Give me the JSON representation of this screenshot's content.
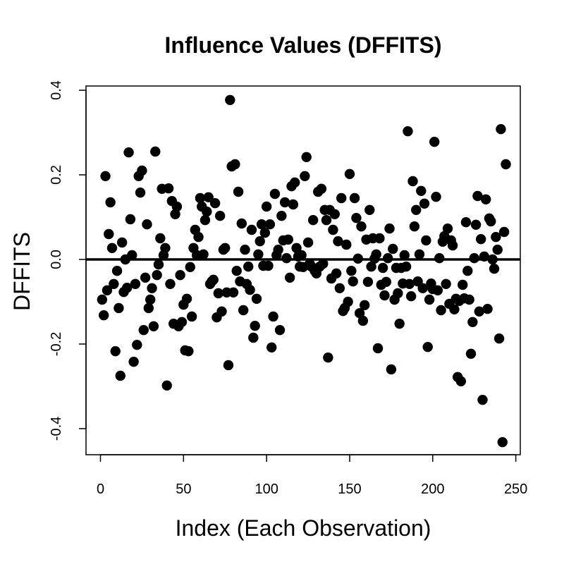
{
  "chart_data": {
    "type": "scatter",
    "title": "Influence Values (DFFITS)",
    "x_label": "Index (Each Observation)",
    "y_label": "DFFITS",
    "color": "#000000",
    "hline": 0,
    "xlim": [
      -8.7,
      252.7
    ],
    "ylim": [
      -0.4617,
      0.41
    ],
    "xticks": [
      0,
      50,
      100,
      150,
      200,
      250
    ],
    "yticks": [
      -0.4,
      -0.2,
      {
        "value": 0,
        "label": "0.0"
      },
      0.2,
      0.4
    ],
    "x": [
      1,
      2,
      3,
      4,
      5,
      6,
      7,
      8,
      9,
      10,
      11,
      12,
      13,
      14,
      15,
      16,
      17,
      18,
      19,
      20,
      21,
      22,
      23,
      24,
      25,
      26,
      27,
      28,
      29,
      30,
      31,
      32,
      33,
      34,
      35,
      36,
      37,
      38,
      39,
      40,
      41,
      42,
      43,
      44,
      45,
      46,
      47,
      48,
      49,
      50,
      51,
      52,
      53,
      54,
      55,
      56,
      57,
      58,
      59,
      60,
      61,
      62,
      63,
      64,
      65,
      66,
      67,
      68,
      69,
      70,
      71,
      72,
      73,
      74,
      75,
      76,
      77,
      78,
      79,
      80,
      81,
      82,
      83,
      84,
      85,
      86,
      87,
      88,
      89,
      90,
      91,
      92,
      93,
      94,
      95,
      96,
      97,
      98,
      99,
      100,
      101,
      102,
      103,
      104,
      105,
      106,
      107,
      108,
      109,
      110,
      111,
      112,
      113,
      114,
      115,
      116,
      117,
      118,
      119,
      120,
      121,
      122,
      123,
      124,
      125,
      126,
      127,
      128,
      129,
      130,
      131,
      132,
      133,
      134,
      135,
      136,
      137,
      138,
      139,
      140,
      141,
      142,
      143,
      144,
      145,
      146,
      147,
      148,
      149,
      150,
      151,
      152,
      153,
      154,
      155,
      156,
      157,
      158,
      159,
      160,
      161,
      162,
      163,
      164,
      165,
      166,
      167,
      168,
      169,
      170,
      171,
      172,
      173,
      174,
      175,
      176,
      177,
      178,
      179,
      180,
      181,
      182,
      183,
      184,
      185,
      186,
      187,
      188,
      189,
      190,
      191,
      192,
      193,
      194,
      195,
      196,
      197,
      198,
      199,
      200,
      201,
      202,
      203,
      204,
      205,
      206,
      207,
      208,
      209,
      210,
      211,
      212,
      213,
      214,
      215,
      216,
      217,
      218,
      219,
      220,
      221,
      222,
      223,
      224,
      225,
      226,
      227,
      228,
      229,
      230,
      231,
      232,
      233,
      234,
      235,
      236,
      237,
      238,
      239,
      240,
      241,
      242,
      243,
      244
    ],
    "values": [
      -0.095,
      -0.132,
      0.197,
      -0.073,
      0.06,
      0.135,
      0.027,
      -0.058,
      -0.217,
      -0.027,
      -0.115,
      -0.275,
      0.04,
      -0.077,
      0.0,
      -0.067,
      0.253,
      0.095,
      0.01,
      -0.242,
      -0.058,
      -0.202,
      0.197,
      0.158,
      0.21,
      -0.167,
      -0.043,
      0.083,
      -0.115,
      -0.095,
      -0.068,
      -0.158,
      0.255,
      -0.037,
      -0.012,
      0.05,
      0.167,
      0.01,
      0.027,
      -0.298,
      0.168,
      -0.058,
      0.138,
      -0.152,
      0.107,
      0.125,
      -0.158,
      -0.037,
      -0.148,
      -0.107,
      -0.215,
      -0.093,
      -0.217,
      -0.018,
      -0.135,
      0.027,
      0.07,
      0.01,
      0.053,
      0.145,
      0.125,
      0.012,
      0.093,
      0.113,
      0.147,
      -0.058,
      -0.052,
      -0.048,
      0.133,
      -0.137,
      -0.08,
      0.103,
      -0.123,
      0.023,
      0.027,
      -0.078,
      -0.25,
      0.377,
      0.22,
      -0.078,
      0.225,
      -0.027,
      0.16,
      -0.052,
      0.085,
      -0.12,
      0.023,
      -0.058,
      -0.017,
      -0.072,
      0.07,
      -0.185,
      -0.157,
      -0.093,
      0.012,
      0.043,
      0.083,
      -0.015,
      0.063,
      0.125,
      -0.015,
      0.083,
      -0.208,
      -0.135,
      0.155,
      0.01,
      0.023,
      -0.167,
      0.103,
      0.045,
      0.135,
      0.003,
      0.047,
      -0.043,
      0.173,
      0.13,
      0.182,
      0.027,
      0.007,
      -0.017,
      0.01,
      -0.018,
      0.197,
      0.242,
      0.04,
      -0.01,
      -0.017,
      0.093,
      -0.027,
      -0.033,
      0.16,
      -0.017,
      0.167,
      -0.01,
      0.117,
      0.093,
      -0.232,
      0.117,
      -0.045,
      0.07,
      0.107,
      -0.033,
      0.043,
      -0.068,
      0.145,
      -0.122,
      -0.115,
      0.035,
      -0.1,
      0.202,
      -0.027,
      -0.052,
      0.145,
      0.098,
      0.002,
      -0.127,
      0.078,
      -0.145,
      -0.108,
      0.047,
      -0.053,
      0.117,
      -0.017,
      0.05,
      0.002,
      0.012,
      -0.21,
      0.05,
      -0.06,
      -0.02,
      -0.085,
      -0.053,
      0.003,
      0.073,
      -0.26,
      0.025,
      -0.095,
      -0.02,
      -0.08,
      -0.152,
      -0.02,
      -0.057,
      0.01,
      -0.017,
      0.303,
      -0.058,
      -0.087,
      0.185,
      0.078,
      0.117,
      -0.052,
      0.012,
      0.162,
      -0.068,
      0.132,
      0.045,
      -0.207,
      -0.095,
      -0.057,
      -0.07,
      0.278,
      0.148,
      -0.073,
      0.003,
      -0.12,
      0.042,
      0.055,
      -0.058,
      0.073,
      -0.105,
      0.045,
      0.033,
      -0.118,
      -0.093,
      -0.278,
      -0.098,
      -0.288,
      -0.06,
      -0.092,
      0.088,
      -0.027,
      -0.095,
      -0.223,
      -0.148,
      0.003,
      0.082,
      0.15,
      -0.123,
      0.048,
      -0.332,
      0.007,
      0.142,
      -0.117,
      0.097,
      0.09,
      0.0,
      -0.022,
      0.053,
      0.023,
      -0.187,
      0.308,
      -0.432,
      0.065,
      0.225
    ]
  }
}
